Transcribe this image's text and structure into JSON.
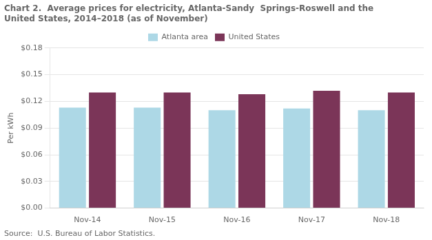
{
  "chart_data": {
    "type": "bar",
    "title": [
      "Chart 2.  Average prices for electricity, Atlanta-Sandy  Springs-Roswell and the",
      "United States, 2014–2018 (as of November)"
    ],
    "ylabel": "Per kWh",
    "annotations": [
      "Source:  U.S. Bureau of Labor Statistics."
    ],
    "categories": [
      "Nov-14",
      "Nov-15",
      "Nov-16",
      "Nov-17",
      "Nov-18"
    ],
    "series": [
      {
        "name": "Atlanta area",
        "color": "#ADD8E6",
        "values": [
          0.113,
          0.113,
          0.11,
          0.112,
          0.11
        ]
      },
      {
        "name": "United States",
        "color": "#7B3558",
        "values": [
          0.13,
          0.13,
          0.128,
          0.132,
          0.13
        ]
      }
    ],
    "ylim": [
      0,
      0.18
    ],
    "yticks": [
      {
        "value": 0.0,
        "label": "$0.00"
      },
      {
        "value": 0.03,
        "label": "$0.03"
      },
      {
        "value": 0.06,
        "label": "$0.06"
      },
      {
        "value": 0.09,
        "label": "$0.09"
      },
      {
        "value": 0.12,
        "label": "$0.12"
      },
      {
        "value": 0.15,
        "label": "$0.15"
      },
      {
        "value": 0.18,
        "label": "$0.18"
      }
    ],
    "grid": true,
    "legend": "top"
  }
}
